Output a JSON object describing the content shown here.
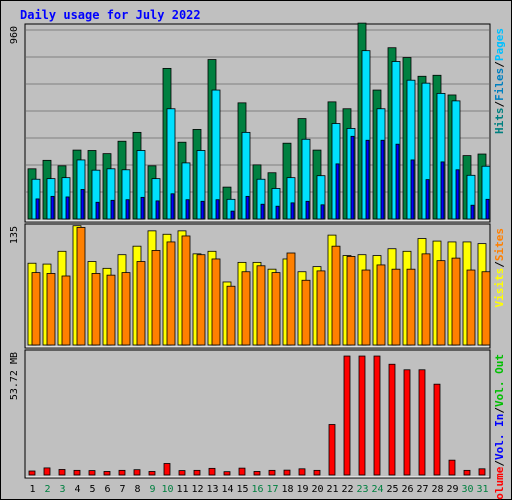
{
  "chart_data": {
    "type": "bar",
    "title": "Daily usage for July 2022",
    "categories": [
      "1",
      "2",
      "3",
      "4",
      "5",
      "6",
      "7",
      "8",
      "9",
      "10",
      "11",
      "12",
      "13",
      "14",
      "15",
      "16",
      "17",
      "18",
      "19",
      "20",
      "21",
      "22",
      "23",
      "24",
      "25",
      "26",
      "27",
      "28",
      "29",
      "30",
      "31"
    ],
    "weekend_color": "#008040",
    "weekday_color": "#000000",
    "weekend_days": [
      "2",
      "3",
      "9",
      "10",
      "16",
      "17",
      "23",
      "24",
      "30",
      "31"
    ],
    "panels": [
      {
        "id": "hits_files_pages",
        "ymax": 960,
        "ymax_label": "960",
        "side_label": [
          {
            "text": "Hits",
            "color": "#008080"
          },
          {
            "text": "/",
            "color": "#000000"
          },
          {
            "text": "Files",
            "color": "#0080C0"
          },
          {
            "text": "/",
            "color": "#000000"
          },
          {
            "text": "Pages",
            "color": "#00C0FF"
          }
        ],
        "series": [
          {
            "name": "Hits",
            "color": "#008040",
            "values": [
              255,
              298,
              270,
              350,
              348,
              332,
              395,
              440,
              270,
              765,
              390,
              455,
              810,
              162,
              590,
              275,
              235,
              385,
              510,
              350,
              595,
              560,
              995,
              655,
              870,
              820,
              725,
              730,
              630,
              322,
              330
            ]
          },
          {
            "name": "Files",
            "color": "#00E0FF",
            "values": [
              202,
              205,
              210,
              300,
              248,
              255,
              250,
              348,
              205,
              560,
              285,
              348,
              655,
              100,
              440,
              202,
              155,
              210,
              405,
              220,
              485,
              460,
              855,
              560,
              800,
              705,
              690,
              638,
              600,
              222,
              268
            ]
          },
          {
            "name": "Pages",
            "color": "#0000FF",
            "values": [
              102,
              115,
              112,
              150,
              85,
              95,
              98,
              110,
              92,
              128,
              98,
              90,
              98,
              40,
              115,
              75,
              65,
              82,
              90,
              72,
              280,
              420,
              400,
              400,
              380,
              300,
              200,
              290,
              250,
              70,
              100
            ]
          }
        ]
      },
      {
        "id": "visits_sites",
        "ymax": 135,
        "ymax_label": "135",
        "side_label": [
          {
            "text": "Visits",
            "color": "#FFFF00"
          },
          {
            "text": "/",
            "color": "#000000"
          },
          {
            "text": "Sites",
            "color": "#FF8000"
          }
        ],
        "series": [
          {
            "name": "Visits",
            "color": "#FFFF00",
            "values": [
              96,
              95,
              110,
              140,
              98,
              90,
              106,
              116,
              134,
              130,
              134,
              107,
              110,
              74,
              97,
              97,
              89,
              101,
              86,
              92,
              129,
              105,
              106,
              105,
              113,
              110,
              125,
              122,
              121,
              121,
              119
            ]
          },
          {
            "name": "Sites",
            "color": "#FF8000",
            "values": [
              85,
              84,
              81,
              138,
              84,
              82,
              85,
              98,
              111,
              121,
              128,
              106,
              101,
              69,
              86,
              93,
              85,
              108,
              76,
              87,
              116,
              104,
              88,
              94,
              89,
              89,
              107,
              99,
              102,
              88,
              86
            ]
          }
        ]
      },
      {
        "id": "volume",
        "ymax": 53.72,
        "ymax_label": "53.72 MB",
        "side_label": [
          {
            "text": "Volume",
            "color": "#FF0000"
          },
          {
            "text": "/",
            "color": "#000000"
          },
          {
            "text": "Vol. In",
            "color": "#0000FF"
          },
          {
            "text": "/",
            "color": "#000000"
          },
          {
            "text": "Vol. Out",
            "color": "#00C000"
          }
        ],
        "series": [
          {
            "name": "Volume",
            "color": "#FF0000",
            "values": [
              1.8,
              3.2,
              2.5,
              2.1,
              2.0,
              1.6,
              2.1,
              2.4,
              1.6,
              5.2,
              2.0,
              2.1,
              3.0,
              1.5,
              3.1,
              1.6,
              2.1,
              2.2,
              2.8,
              2.1,
              22.8,
              53.7,
              53.7,
              53.7,
              50.0,
              47.5,
              47.5,
              41.0,
              6.7,
              2.1,
              2.8
            ]
          }
        ]
      }
    ]
  }
}
